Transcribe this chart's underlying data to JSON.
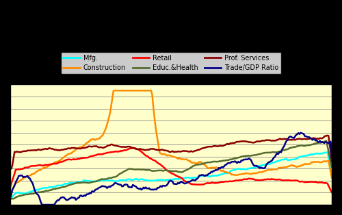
{
  "title": "",
  "background_color": "#ffffcc",
  "outer_background": "#000000",
  "legend_entries": [
    "Mfg.",
    "Construction",
    "Retail",
    "Educ.&Health",
    "Prof. Services",
    "Trade/GDP Ratio"
  ],
  "legend_colors": [
    "#00ffff",
    "#ff8c00",
    "#ff0000",
    "#556b2f",
    "#8b0000",
    "#00008b"
  ],
  "series_colors": {
    "Mfg": "#00ffff",
    "Construction": "#ff8c00",
    "Retail": "#ff0000",
    "EducHealth": "#556b2f",
    "ProfServices": "#8b0000",
    "TradeGDP": "#00008b"
  },
  "ylim": [
    0,
    1
  ],
  "xlim": [
    0,
    1
  ],
  "gridlines_y": [
    0.1,
    0.2,
    0.3,
    0.4,
    0.5,
    0.6,
    0.7,
    0.8,
    0.9
  ],
  "line_width": 1.8
}
